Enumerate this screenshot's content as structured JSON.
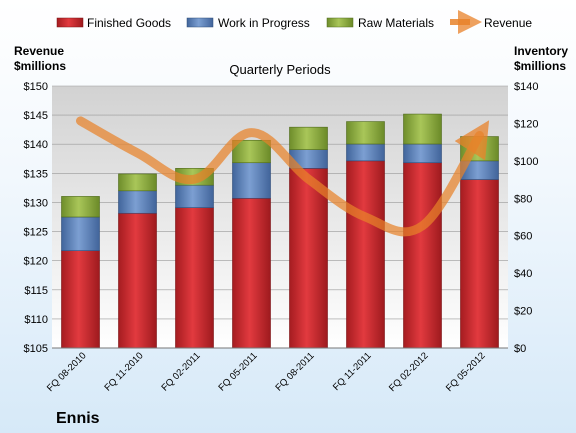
{
  "chart_data": {
    "type": "bar",
    "stacked": true,
    "title": "Quarterly Periods",
    "company": "Ennis",
    "categories": [
      "FQ 08-2010",
      "FQ 11-2010",
      "FQ 02-2011",
      "FQ 05-2011",
      "FQ 08-2011",
      "FQ 11-2011",
      "FQ 02-2012",
      "FQ 05-2012"
    ],
    "left_axis": {
      "label_line1": "Revenue",
      "label_line2": "$millions",
      "ylim": [
        105,
        150
      ],
      "ticks": [
        "$105",
        "$110",
        "$115",
        "$120",
        "$125",
        "$130",
        "$135",
        "$140",
        "$145",
        "$150"
      ]
    },
    "right_axis": {
      "label_line1": "Inventory",
      "label_line2": "$millions",
      "ylim": [
        0,
        140
      ],
      "ticks": [
        "$0",
        "$20",
        "$40",
        "$60",
        "$80",
        "$100",
        "$120",
        "$140"
      ]
    },
    "series": [
      {
        "name": "Finished Goods",
        "axis": "right",
        "color": "#c0262b",
        "values": [
          52,
          72,
          75,
          80,
          96,
          100,
          99,
          90
        ]
      },
      {
        "name": "Work in Progress",
        "axis": "right",
        "color": "#5b7fb5",
        "values": [
          18,
          12,
          12,
          19,
          10,
          9,
          10,
          10
        ]
      },
      {
        "name": "Raw Materials",
        "axis": "right",
        "color": "#8aaa3e",
        "values": [
          11,
          9,
          9,
          12,
          12,
          12,
          16,
          13
        ]
      },
      {
        "name": "Revenue",
        "type": "line",
        "axis": "left",
        "color": "#e8822a",
        "values": [
          144,
          138.5,
          134,
          142,
          134,
          127.5,
          126,
          141.5
        ]
      }
    ],
    "legend_position": "top",
    "grid": true
  }
}
